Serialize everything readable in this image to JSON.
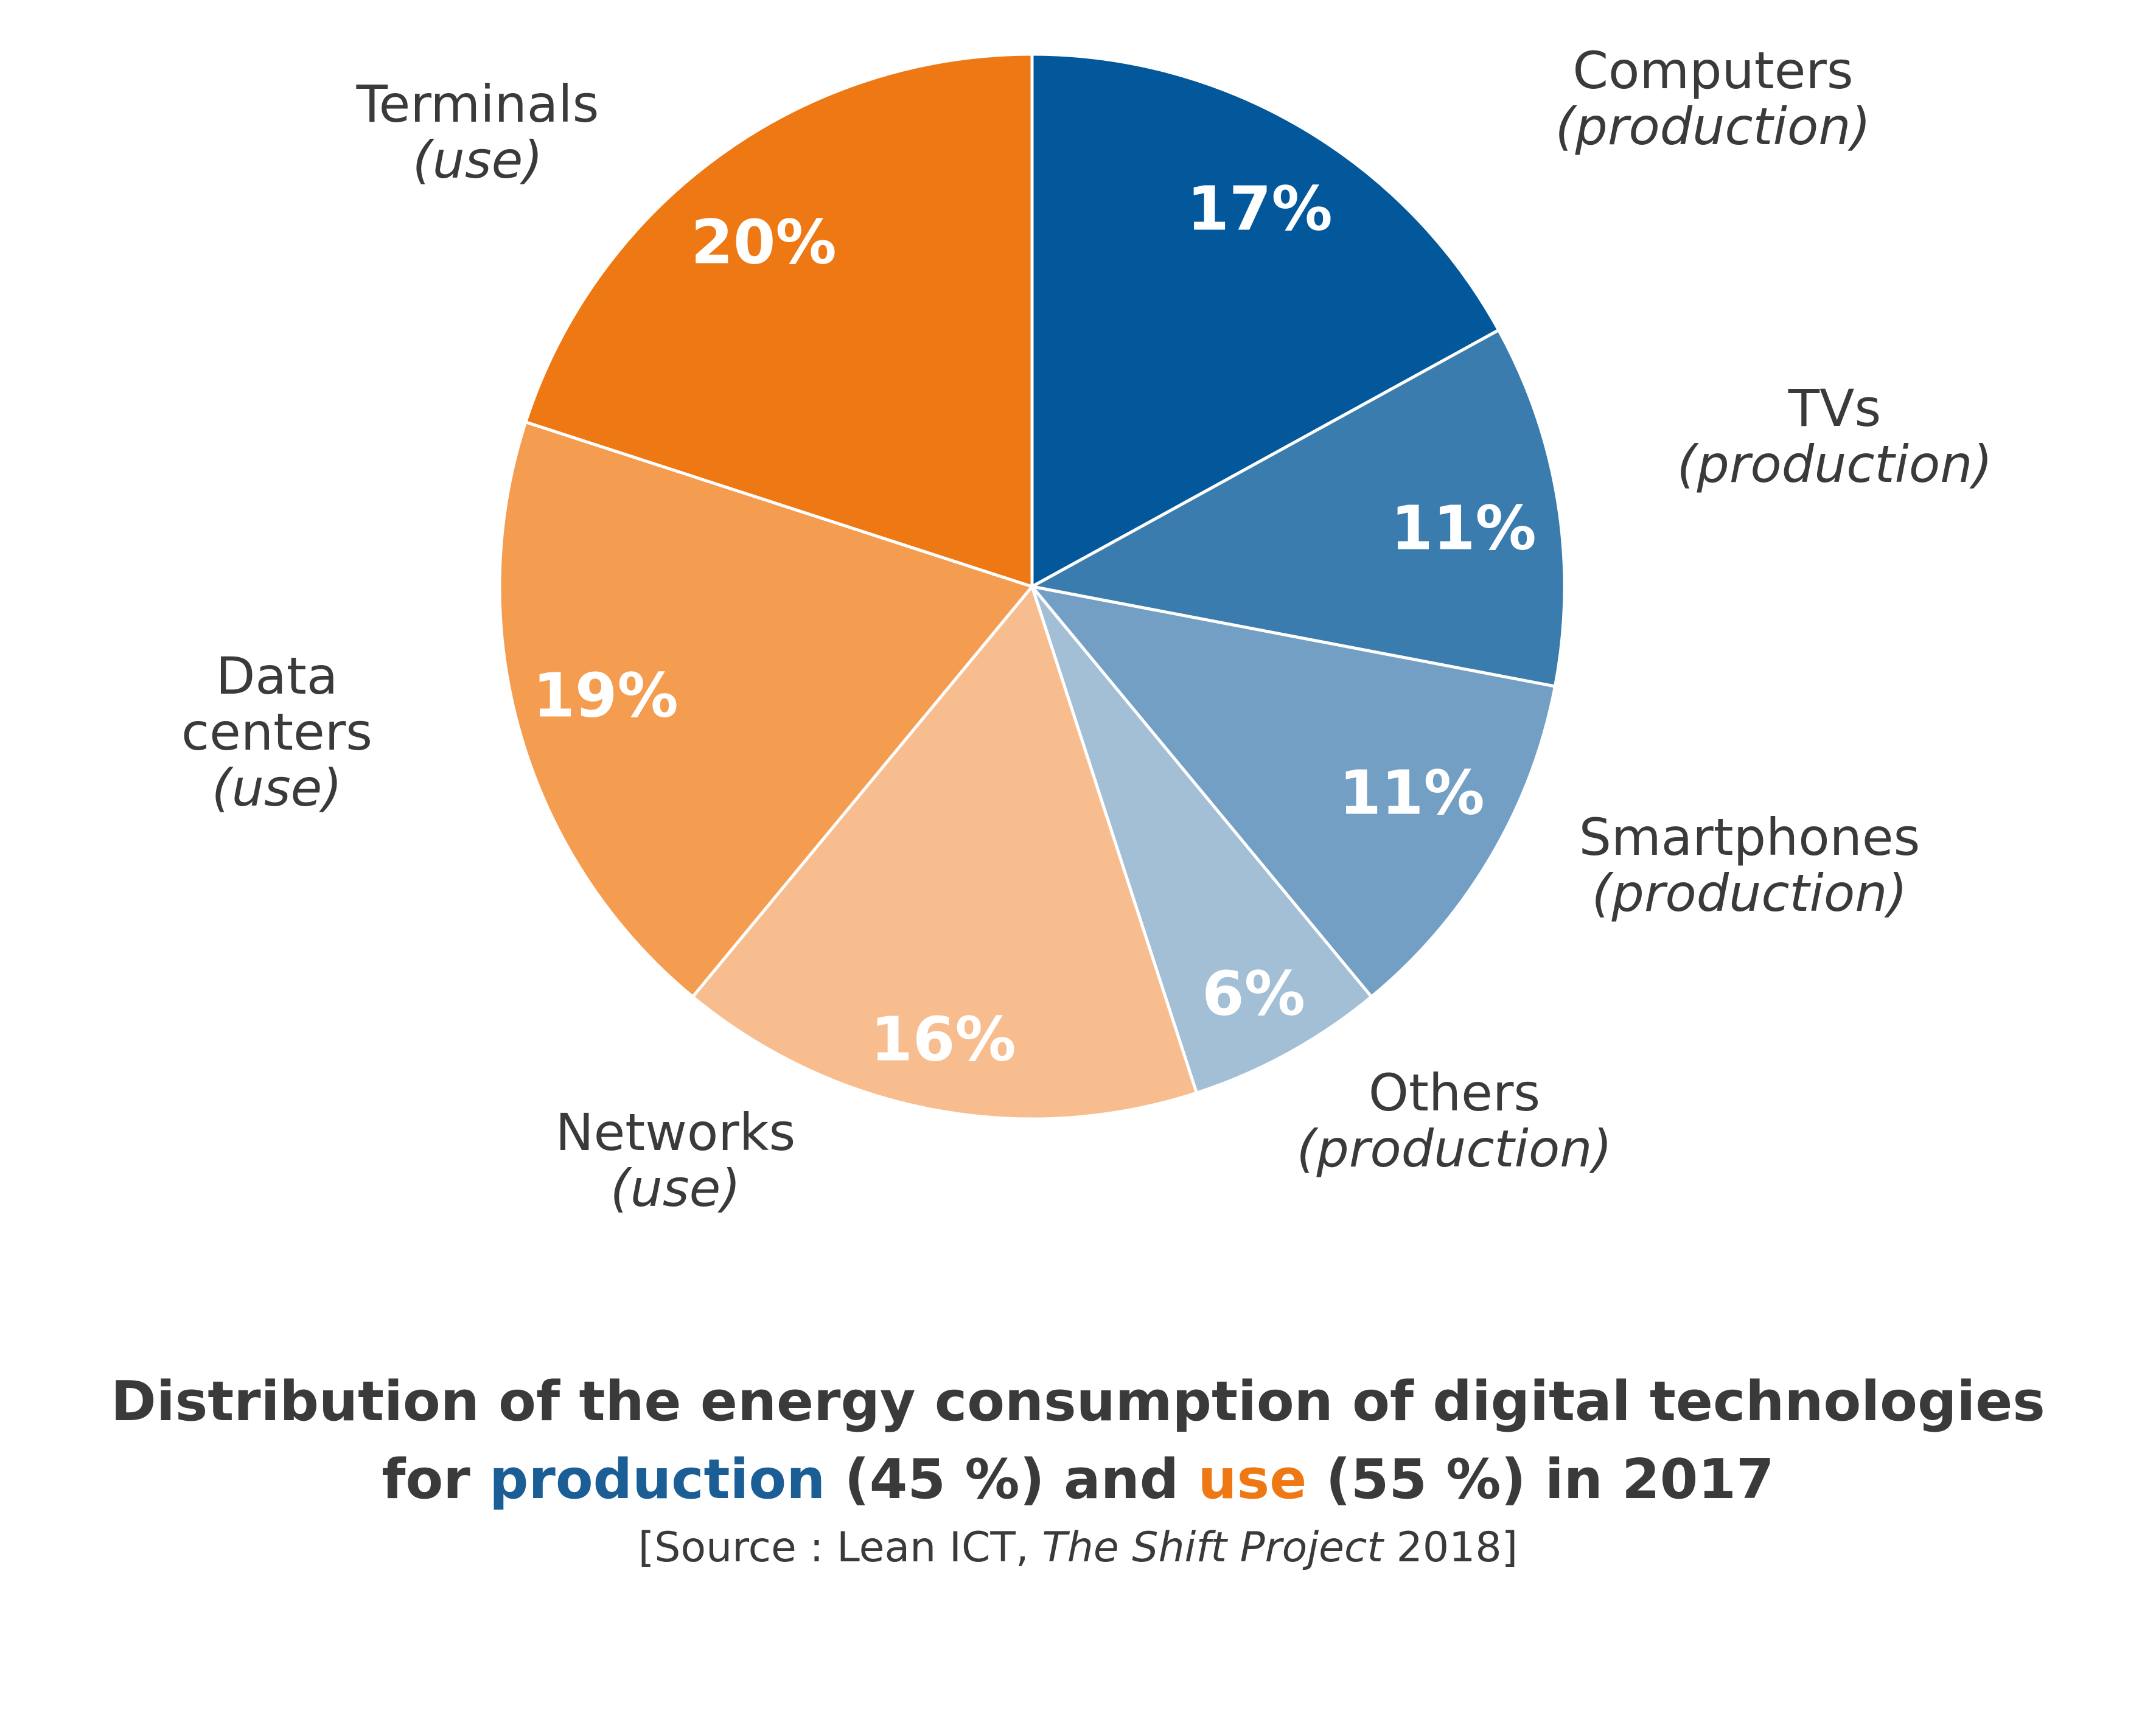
{
  "chart_data": {
    "type": "pie",
    "slices": [
      {
        "name": "Computers",
        "qualifier": "(production)",
        "value": 17,
        "label": "17%",
        "color": "#02589A"
      },
      {
        "name": "TVs",
        "qualifier": "(production)",
        "value": 11,
        "label": "11%",
        "color": "#3B7CAE"
      },
      {
        "name": "Smartphones",
        "qualifier": "(production)",
        "value": 11,
        "label": "11%",
        "color": "#729FC3"
      },
      {
        "name": "Others",
        "qualifier": "(production)",
        "value": 6,
        "label": "6%",
        "color": "#A3BFD6"
      },
      {
        "name": "Networks",
        "qualifier": "(use)",
        "value": 16,
        "label": "16%",
        "color": "#F7BD8E"
      },
      {
        "name": "Data centers",
        "qualifier": "(use)",
        "value": 19,
        "label": "19%",
        "color": "#F49C50"
      },
      {
        "name": "Terminals",
        "qualifier": "(use)",
        "value": 20,
        "label": "20%",
        "color": "#EE7813"
      }
    ],
    "start": "top, clockwise"
  },
  "caption": {
    "line1": "Distribution of the energy consumption of digital technologies",
    "line2_pre": "for ",
    "line2_production": "production",
    "line2_mid": " (45 %) and ",
    "line2_use": "use",
    "line2_post": " (55 %) in 2017",
    "source_pre": "[Source : Lean ICT, ",
    "source_italic": "The Shift Project",
    "source_post": " 2018]",
    "production_color": "#1B5E96",
    "use_color": "#EE7813"
  }
}
